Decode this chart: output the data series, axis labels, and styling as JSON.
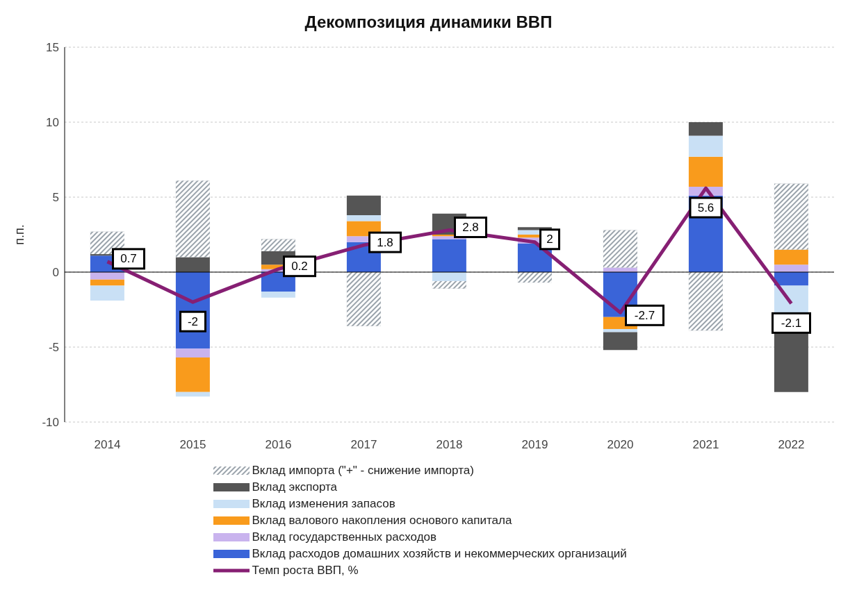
{
  "chart_data": {
    "type": "bar",
    "title": "Декомпозиция динамики ВВП",
    "ylabel": "п.п.",
    "categories": [
      "2014",
      "2015",
      "2016",
      "2017",
      "2018",
      "2019",
      "2020",
      "2021",
      "2022"
    ],
    "stacked": true,
    "ylim": [
      -10,
      15
    ],
    "yticks": [
      -10,
      -5,
      0,
      5,
      10,
      15
    ],
    "grid": "y",
    "legend": "bottom",
    "ref_lines": [
      {
        "axis": "y",
        "value": 0,
        "color": "#000000"
      }
    ],
    "series": [
      {
        "name": "Вклад расходов домашних хозяйств и некоммерческих организаций",
        "color": "#3a64d8",
        "values": [
          1.1,
          -5.1,
          -1.3,
          2.0,
          2.2,
          1.9,
          -3.0,
          5.1,
          -0.9
        ]
      },
      {
        "name": "Вклад государственных расходов",
        "color": "#c9b3ee",
        "values": [
          -0.5,
          -0.6,
          0.2,
          0.4,
          0.2,
          0.4,
          0.3,
          0.6,
          0.5
        ]
      },
      {
        "name": "Вклад валового накопления основого капитала",
        "color": "#f99b1c",
        "values": [
          -0.4,
          -2.3,
          0.3,
          1.0,
          0.1,
          0.2,
          -0.8,
          2.0,
          1.0
        ]
      },
      {
        "name": "Вклад изменения запасов",
        "color": "#c9e0f5",
        "values": [
          -1.0,
          -0.3,
          -0.4,
          0.4,
          -0.6,
          0.3,
          -0.2,
          1.4,
          -1.8
        ]
      },
      {
        "name": "Вклад экспорта",
        "color": "#555555",
        "values": [
          0.1,
          1.0,
          0.9,
          1.3,
          1.4,
          0.2,
          -1.2,
          0.9,
          -5.3
        ]
      },
      {
        "name": "Вклад импорта (\"+\" - снижение импорта)",
        "color": "#9aa3ab",
        "values": [
          1.5,
          5.1,
          0.8,
          -3.6,
          -0.5,
          -0.7,
          2.5,
          -3.9,
          4.4
        ]
      },
      {
        "name": "Темп роста ВВП, %",
        "type": "line",
        "color": "#861f73",
        "data_labels": true,
        "values": [
          0.7,
          -2,
          0.2,
          1.8,
          2.8,
          2,
          -2.7,
          5.6,
          -2.1
        ]
      }
    ]
  }
}
